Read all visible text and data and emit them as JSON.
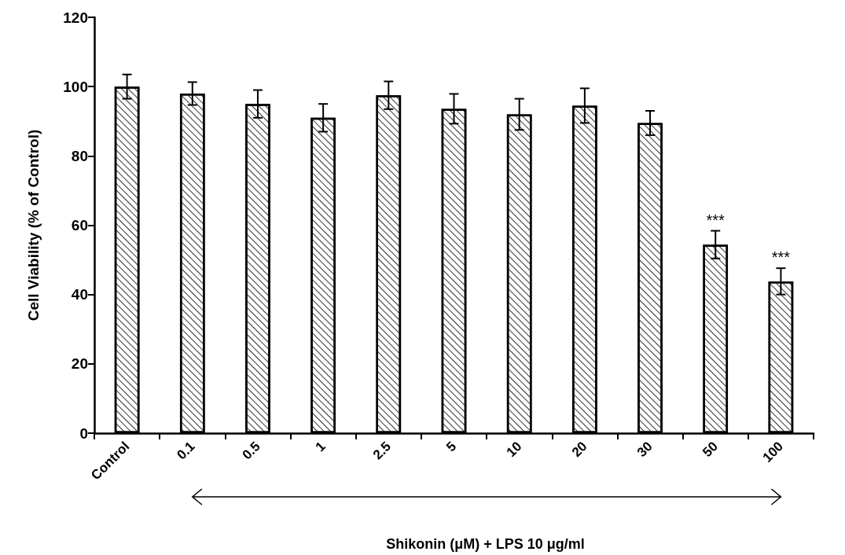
{
  "chart_data": {
    "type": "bar",
    "xlabel": "Shikonin (μM) + LPS 10 μg/ml",
    "ylabel": "Cell Viability (% of Control)",
    "categories": [
      "Control",
      "0.1",
      "0.5",
      "1",
      "2.5",
      "5",
      "10",
      "20",
      "30",
      "50",
      "100"
    ],
    "values": [
      100,
      98,
      95,
      91,
      97.5,
      93.6,
      92,
      94.5,
      89.5,
      54.4,
      43.8
    ],
    "errors": [
      3.5,
      3.3,
      4,
      4,
      4,
      4.3,
      4.5,
      5,
      3.5,
      4,
      3.8
    ],
    "color": "#ffffff",
    "ylim": [
      0,
      120
    ],
    "yticks": [
      0,
      20,
      40,
      60,
      80,
      100,
      120
    ],
    "grid": false,
    "annotations": [
      "***",
      "***"
    ]
  }
}
